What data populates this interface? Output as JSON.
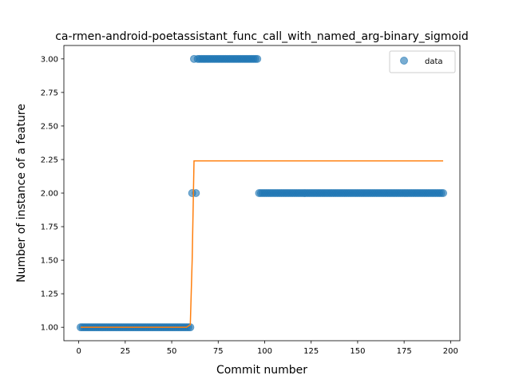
{
  "chart_data": {
    "type": "scatter",
    "title": "ca-rmen-android-poetassistant_func_call_with_named_arg-binary_sigmoid",
    "xlabel": "Commit number",
    "ylabel": "Number of instance of a feature",
    "xlim": [
      -8,
      205
    ],
    "ylim": [
      0.9,
      3.1
    ],
    "xticks": [
      0,
      25,
      50,
      75,
      100,
      125,
      150,
      175,
      200
    ],
    "yticks": [
      1.0,
      1.25,
      1.5,
      1.75,
      2.0,
      2.25,
      2.5,
      2.75,
      3.0
    ],
    "ytick_labels": [
      "1.00",
      "1.25",
      "1.50",
      "1.75",
      "2.00",
      "2.25",
      "2.50",
      "2.75",
      "3.00"
    ],
    "legend": {
      "position": "top-right",
      "entries": [
        "data"
      ]
    },
    "colors": {
      "data": "#1f77b4",
      "fit": "#ff7f0e"
    },
    "series": [
      {
        "name": "data",
        "kind": "scatter",
        "segments": [
          {
            "x_start": 1,
            "x_end": 60,
            "y": 1
          },
          {
            "x_start": 61,
            "x_end": 61,
            "y": 2
          },
          {
            "x_start": 62,
            "x_end": 62,
            "y": 3
          },
          {
            "x_start": 63,
            "x_end": 63,
            "y": 2
          },
          {
            "x_start": 64,
            "x_end": 96,
            "y": 3
          },
          {
            "x_start": 97,
            "x_end": 196,
            "y": 2
          }
        ]
      },
      {
        "kind": "line",
        "points": [
          [
            1,
            1.0
          ],
          [
            58,
            1.0
          ],
          [
            60,
            1.02
          ],
          [
            61,
            1.5
          ],
          [
            62,
            2.24
          ],
          [
            196,
            2.24
          ]
        ]
      }
    ]
  }
}
